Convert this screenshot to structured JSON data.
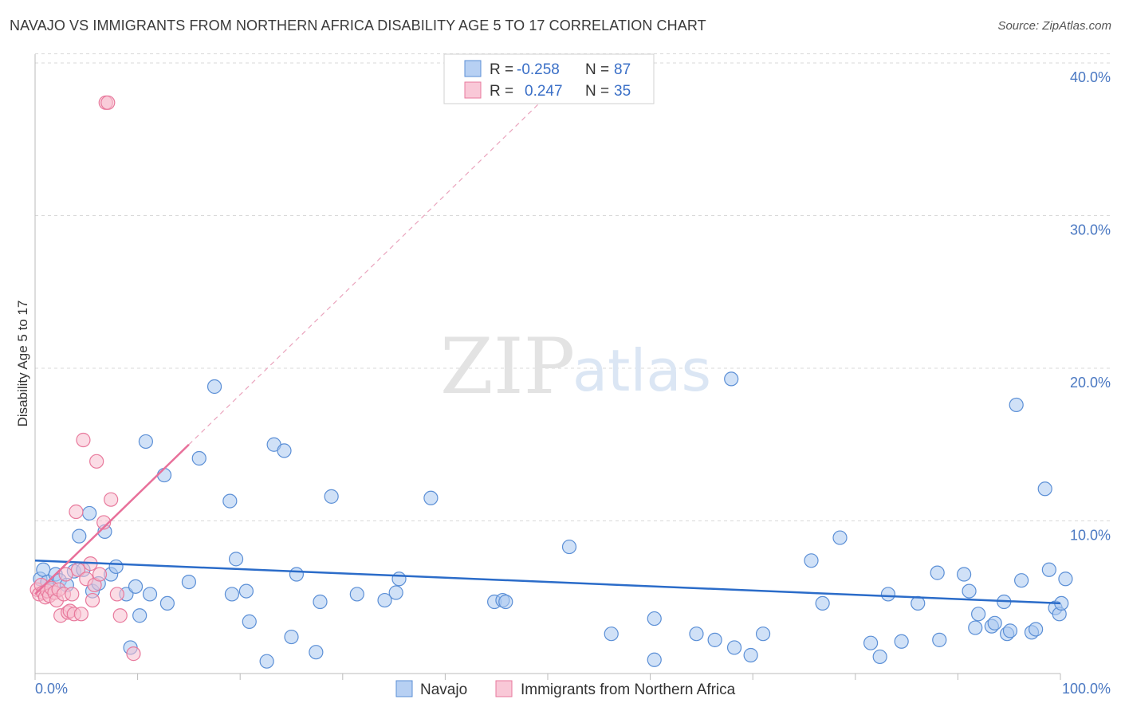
{
  "title": "NAVAJO VS IMMIGRANTS FROM NORTHERN AFRICA DISABILITY AGE 5 TO 17 CORRELATION CHART",
  "source": "Source: ZipAtlas.com",
  "watermark": {
    "zip": "ZIP",
    "atlas": "atlas"
  },
  "colors": {
    "navajo_fill": "#a9c8f0",
    "navajo_stroke": "#5b8fd6",
    "navajo_line": "#2b6cc9",
    "africa_fill": "#f7bfd0",
    "africa_stroke": "#e8799c",
    "africa_line": "#e8709a",
    "grid": "#d8d8d8",
    "tick_text": "#4a78c2"
  },
  "legend": {
    "rows": [
      {
        "r_label": "R =",
        "r_value": "-0.258",
        "n_label": "N =",
        "n_value": "87"
      },
      {
        "r_label": "R =",
        "r_value": "0.247",
        "n_label": "N =",
        "n_value": "35"
      }
    ]
  },
  "chart_data": {
    "type": "scatter",
    "title": "NAVAJO VS IMMIGRANTS FROM NORTHERN AFRICA DISABILITY AGE 5 TO 17 CORRELATION CHART",
    "xlabel": "",
    "ylabel": "Disability Age 5 to 17",
    "xlim": [
      0,
      100
    ],
    "ylim": [
      0,
      41
    ],
    "x_tick_labels": [
      "0.0%",
      "100.0%"
    ],
    "y_ticks": [
      10,
      20,
      30,
      40
    ],
    "y_tick_labels": [
      "10.0%",
      "20.0%",
      "30.0%",
      "40.0%"
    ],
    "legend_position": "top-center",
    "series": [
      {
        "name": "Navajo",
        "R": -0.258,
        "N": 87,
        "trend": {
          "x0": 0,
          "y0": 7.4,
          "x1": 100,
          "y1": 4.6
        },
        "points": [
          [
            0.5,
            6.2
          ],
          [
            0.8,
            6.8
          ],
          [
            1.2,
            6.0
          ],
          [
            1.5,
            5.5
          ],
          [
            2.0,
            6.5
          ],
          [
            2.4,
            6.1
          ],
          [
            3.1,
            5.8
          ],
          [
            3.8,
            6.7
          ],
          [
            4.3,
            9.0
          ],
          [
            4.7,
            6.8
          ],
          [
            5.3,
            10.5
          ],
          [
            5.6,
            5.4
          ],
          [
            6.2,
            5.9
          ],
          [
            6.8,
            9.3
          ],
          [
            7.4,
            6.5
          ],
          [
            7.9,
            7.0
          ],
          [
            8.9,
            5.2
          ],
          [
            9.3,
            1.7
          ],
          [
            9.8,
            5.7
          ],
          [
            10.2,
            3.8
          ],
          [
            10.8,
            15.2
          ],
          [
            11.2,
            5.2
          ],
          [
            12.6,
            13.0
          ],
          [
            12.9,
            4.6
          ],
          [
            15.0,
            6.0
          ],
          [
            16.0,
            14.1
          ],
          [
            17.5,
            18.8
          ],
          [
            19.0,
            11.3
          ],
          [
            19.2,
            5.2
          ],
          [
            19.6,
            7.5
          ],
          [
            20.6,
            5.4
          ],
          [
            20.9,
            3.4
          ],
          [
            22.6,
            0.8
          ],
          [
            23.3,
            15.0
          ],
          [
            24.3,
            14.6
          ],
          [
            25.0,
            2.4
          ],
          [
            25.5,
            6.5
          ],
          [
            27.4,
            1.4
          ],
          [
            27.8,
            4.7
          ],
          [
            28.9,
            11.6
          ],
          [
            31.4,
            5.2
          ],
          [
            34.1,
            4.8
          ],
          [
            35.2,
            5.3
          ],
          [
            35.5,
            6.2
          ],
          [
            38.6,
            11.5
          ],
          [
            44.8,
            4.7
          ],
          [
            45.6,
            4.8
          ],
          [
            45.9,
            4.7
          ],
          [
            52.1,
            8.3
          ],
          [
            56.2,
            2.6
          ],
          [
            60.4,
            3.6
          ],
          [
            60.4,
            0.9
          ],
          [
            64.5,
            2.6
          ],
          [
            66.3,
            2.2
          ],
          [
            67.9,
            19.3
          ],
          [
            68.2,
            1.7
          ],
          [
            69.8,
            1.2
          ],
          [
            71.0,
            2.6
          ],
          [
            75.7,
            7.4
          ],
          [
            76.8,
            4.6
          ],
          [
            78.5,
            8.9
          ],
          [
            81.5,
            2.0
          ],
          [
            82.4,
            1.1
          ],
          [
            83.2,
            5.2
          ],
          [
            84.5,
            2.1
          ],
          [
            86.1,
            4.6
          ],
          [
            88.0,
            6.6
          ],
          [
            88.2,
            2.2
          ],
          [
            90.6,
            6.5
          ],
          [
            91.1,
            5.4
          ],
          [
            91.7,
            3.0
          ],
          [
            92.0,
            3.9
          ],
          [
            93.3,
            3.1
          ],
          [
            93.6,
            3.3
          ],
          [
            94.5,
            4.7
          ],
          [
            94.8,
            2.6
          ],
          [
            95.1,
            2.8
          ],
          [
            95.7,
            17.6
          ],
          [
            96.2,
            6.1
          ],
          [
            97.2,
            2.7
          ],
          [
            97.6,
            2.9
          ],
          [
            98.5,
            12.1
          ],
          [
            98.9,
            6.8
          ],
          [
            99.5,
            4.3
          ],
          [
            99.9,
            3.9
          ],
          [
            100.1,
            4.6
          ],
          [
            100.5,
            6.2
          ]
        ]
      },
      {
        "name": "Immigrants from Northern Africa",
        "R": 0.247,
        "N": 35,
        "trend": {
          "x0": 0,
          "y0": 5.2,
          "x1": 15,
          "y1": 15.0,
          "dashed_to_x": 50,
          "dashed_to_y": 37.9
        },
        "points": [
          [
            0.2,
            5.5
          ],
          [
            0.4,
            5.2
          ],
          [
            0.6,
            5.8
          ],
          [
            0.8,
            5.3
          ],
          [
            1.0,
            5.0
          ],
          [
            1.2,
            5.4
          ],
          [
            1.4,
            5.1
          ],
          [
            1.6,
            5.6
          ],
          [
            1.9,
            5.3
          ],
          [
            2.1,
            4.8
          ],
          [
            2.3,
            5.5
          ],
          [
            2.5,
            3.8
          ],
          [
            2.8,
            5.2
          ],
          [
            3.0,
            6.5
          ],
          [
            3.2,
            4.0
          ],
          [
            3.4,
            4.1
          ],
          [
            3.6,
            5.2
          ],
          [
            3.8,
            3.9
          ],
          [
            4.0,
            10.6
          ],
          [
            4.2,
            6.8
          ],
          [
            4.5,
            3.9
          ],
          [
            4.7,
            15.3
          ],
          [
            5.0,
            6.2
          ],
          [
            5.4,
            7.2
          ],
          [
            5.6,
            4.8
          ],
          [
            5.8,
            5.8
          ],
          [
            6.0,
            13.9
          ],
          [
            6.3,
            6.5
          ],
          [
            6.7,
            9.9
          ],
          [
            6.9,
            37.4
          ],
          [
            7.1,
            37.4
          ],
          [
            7.4,
            11.4
          ],
          [
            8.0,
            5.2
          ],
          [
            8.3,
            3.8
          ],
          [
            9.6,
            1.3
          ]
        ]
      }
    ]
  },
  "bottom_legend": [
    "Navajo",
    "Immigrants from Northern Africa"
  ]
}
